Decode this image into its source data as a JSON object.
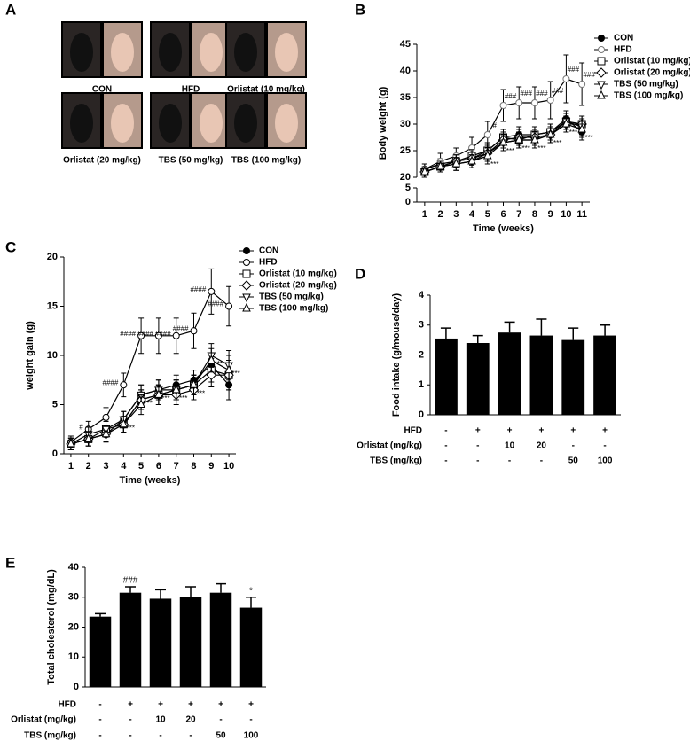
{
  "panel_labels": [
    "A",
    "B",
    "C",
    "D",
    "E"
  ],
  "photo_labels": [
    "CON",
    "HFD",
    "Orlistat (10 mg/kg)",
    "Orlistat  (20 mg/kg)",
    "TBS (50 mg/kg)",
    "TBS (100 mg/kg)"
  ],
  "chart_data": [
    {
      "type": "line",
      "x_label": "Time (weeks)",
      "y_label": "Body weight (g)",
      "x": [
        1,
        2,
        3,
        4,
        5,
        6,
        7,
        8,
        9,
        10,
        11
      ],
      "xlim": [
        0.5,
        11.5
      ],
      "xticks": [
        1,
        2,
        3,
        4,
        5,
        6,
        7,
        8,
        9,
        10,
        11
      ],
      "ylim": [
        0,
        45
      ],
      "yticks": [
        0,
        5,
        20,
        25,
        30,
        35,
        40,
        45
      ],
      "axis_break": [
        5,
        20
      ],
      "series": [
        {
          "name": "CON",
          "color": "#000",
          "marker": "filled-circle",
          "values": [
            21.5,
            22.5,
            23,
            23.5,
            25,
            27.5,
            28,
            28,
            28.5,
            31,
            28.5
          ],
          "errors": [
            1,
            1,
            1.2,
            1.2,
            1.5,
            1.5,
            1.5,
            1.5,
            1.5,
            1.5,
            1.5
          ]
        },
        {
          "name": "HFD",
          "color": "#777",
          "marker": "circle",
          "values": [
            21.5,
            23,
            24,
            25.5,
            28,
            33.5,
            34,
            34,
            34.5,
            38.5,
            37.5
          ],
          "errors": [
            1,
            1.5,
            1.5,
            2,
            2.5,
            3,
            3,
            3,
            3.5,
            4.5,
            4
          ],
          "annotations": [
            null,
            null,
            null,
            null,
            "#",
            "###",
            "###",
            "###",
            "###",
            "###",
            "###"
          ]
        },
        {
          "name": "Orlistat (10 mg/kg)",
          "color": "#000",
          "marker": "square",
          "values": [
            21,
            22,
            23,
            24,
            25,
            27.5,
            27,
            28,
            28.5,
            30.5,
            30
          ],
          "errors": [
            1,
            1,
            1.2,
            1.2,
            1.5,
            1.5,
            1.5,
            1.5,
            1.5,
            1.5,
            1.5
          ]
        },
        {
          "name": "Orlistat (20 mg/kg)",
          "color": "#000",
          "marker": "diamond",
          "values": [
            21,
            22,
            23,
            23.5,
            24.5,
            27,
            27.5,
            27.5,
            28,
            30,
            30
          ],
          "errors": [
            1,
            1,
            1.2,
            1.2,
            1.5,
            1.5,
            1.5,
            1.5,
            1.5,
            1.5,
            1.5
          ]
        },
        {
          "name": "TBS (50 mg/kg)",
          "color": "#000",
          "marker": "triangle-down",
          "values": [
            21,
            22,
            22.5,
            23,
            24.5,
            26.5,
            27,
            27,
            28,
            30.5,
            29.5
          ],
          "errors": [
            1,
            1,
            1.2,
            1.2,
            1.5,
            1.5,
            1.5,
            1.5,
            1.5,
            1.5,
            1.5
          ]
        },
        {
          "name": "TBS (100 mg/kg)",
          "color": "#000",
          "marker": "triangle-up",
          "values": [
            21,
            22,
            22.5,
            23,
            24,
            26.5,
            27,
            27,
            28,
            30,
            29
          ],
          "errors": [
            1,
            1,
            1.2,
            1.2,
            1.5,
            1.5,
            1.5,
            1.5,
            1.5,
            1.5,
            1.5
          ],
          "annotations": [
            null,
            null,
            null,
            null,
            "***",
            "***",
            "***",
            "***",
            "***",
            "***",
            "***"
          ]
        }
      ]
    },
    {
      "type": "line",
      "x_label": "Time (weeks)",
      "y_label": "weight gain (g)",
      "x": [
        1,
        2,
        3,
        4,
        5,
        6,
        7,
        8,
        9,
        10
      ],
      "xlim": [
        0.6,
        10.4
      ],
      "xticks": [
        1,
        2,
        3,
        4,
        5,
        6,
        7,
        8,
        9,
        10
      ],
      "ylim": [
        0,
        20
      ],
      "yticks": [
        0,
        5,
        10,
        15,
        20
      ],
      "series": [
        {
          "name": "CON",
          "color": "#000",
          "marker": "filled-circle",
          "values": [
            1,
            1.5,
            2,
            3.5,
            6,
            6.5,
            7,
            7.5,
            9,
            7
          ],
          "errors": [
            0.6,
            0.7,
            0.8,
            0.8,
            1,
            1,
            1,
            1,
            1.2,
            1.5
          ]
        },
        {
          "name": "HFD",
          "color": "#000",
          "marker": "circle",
          "values": [
            1.2,
            2.5,
            3.7,
            7,
            12,
            12,
            12,
            12.5,
            16.5,
            15
          ],
          "errors": [
            0.6,
            0.8,
            1,
            1.2,
            1.8,
            1.8,
            1.8,
            1.8,
            2.3,
            2
          ]
        },
        {
          "name": "Orlistat (10 mg/kg)",
          "color": "#000",
          "marker": "square",
          "values": [
            1,
            1.5,
            2.5,
            3,
            5.5,
            6,
            6.5,
            7,
            8.5,
            8
          ],
          "errors": [
            0.6,
            0.7,
            0.8,
            0.8,
            1,
            1,
            1,
            1,
            1.2,
            1.5
          ]
        },
        {
          "name": "Orlistat (20 mg/kg)",
          "color": "#000",
          "marker": "diamond",
          "values": [
            1,
            1.5,
            2,
            3,
            5.5,
            6,
            6,
            6.5,
            8,
            8
          ],
          "errors": [
            0.6,
            0.7,
            0.8,
            0.8,
            1,
            1,
            1,
            1,
            1.2,
            1.5
          ]
        },
        {
          "name": "TBS (50 mg/kg)",
          "color": "#000",
          "marker": "triangle-down",
          "values": [
            1,
            2,
            2.5,
            3.5,
            6,
            6.5,
            6.5,
            7,
            10,
            9
          ],
          "errors": [
            0.6,
            0.7,
            0.8,
            0.8,
            1,
            1,
            1,
            1,
            1.2,
            1.5
          ],
          "annotations": [
            null,
            null,
            null,
            "***",
            "***",
            "***",
            "***",
            "***",
            "***",
            "***"
          ]
        },
        {
          "name": "TBS (100 mg/kg)",
          "color": "#000",
          "marker": "triangle-up",
          "values": [
            1,
            1.5,
            2,
            3,
            5,
            6,
            6.5,
            7,
            9.5,
            8.5
          ],
          "errors": [
            0.6,
            0.7,
            0.8,
            0.8,
            1,
            1,
            1,
            1,
            1.2,
            1.5
          ]
        }
      ],
      "hfd_annotations": [
        null,
        "#",
        null,
        "####",
        "####",
        "####",
        "####",
        "####",
        "####",
        "####"
      ]
    },
    {
      "type": "bar",
      "y_label": "Food intake (g/mouse/day)",
      "color": "#000",
      "categories": [
        null,
        null,
        null,
        null,
        null,
        null
      ],
      "values": [
        2.55,
        2.4,
        2.75,
        2.65,
        2.5,
        2.65
      ],
      "errors": [
        0.35,
        0.25,
        0.35,
        0.55,
        0.4,
        0.35
      ],
      "ylim": [
        0,
        4
      ],
      "yticks": [
        0,
        1,
        2,
        3,
        4
      ],
      "conditions": [
        {
          "name": "HFD",
          "values": [
            "-",
            "+",
            "+",
            "+",
            "+",
            "+"
          ]
        },
        {
          "name": "Orlistat (mg/kg)",
          "values": [
            "-",
            "-",
            "10",
            "20",
            "-",
            "-"
          ]
        },
        {
          "name": "TBS (mg/kg)",
          "values": [
            "-",
            "-",
            "-",
            "-",
            "50",
            "100"
          ]
        }
      ]
    },
    {
      "type": "bar",
      "y_label": "Total cholesterol (mg/dL)",
      "color": "#000",
      "categories": [
        null,
        null,
        null,
        null,
        null,
        null
      ],
      "values": [
        23.5,
        31.5,
        29.5,
        30,
        31.5,
        26.5
      ],
      "errors": [
        1,
        2,
        3,
        3.5,
        3,
        3.5
      ],
      "annotations": [
        null,
        "###",
        null,
        null,
        null,
        "*"
      ],
      "ylim": [
        0,
        40
      ],
      "yticks": [
        0,
        10,
        20,
        30,
        40
      ],
      "conditions": [
        {
          "name": "HFD",
          "values": [
            "-",
            "+",
            "+",
            "+",
            "+",
            "+"
          ]
        },
        {
          "name": "Orlistat (mg/kg)",
          "values": [
            "-",
            "-",
            "10",
            "20",
            "-",
            "-"
          ]
        },
        {
          "name": "TBS (mg/kg)",
          "values": [
            "-",
            "-",
            "-",
            "-",
            "50",
            "100"
          ]
        }
      ]
    }
  ]
}
